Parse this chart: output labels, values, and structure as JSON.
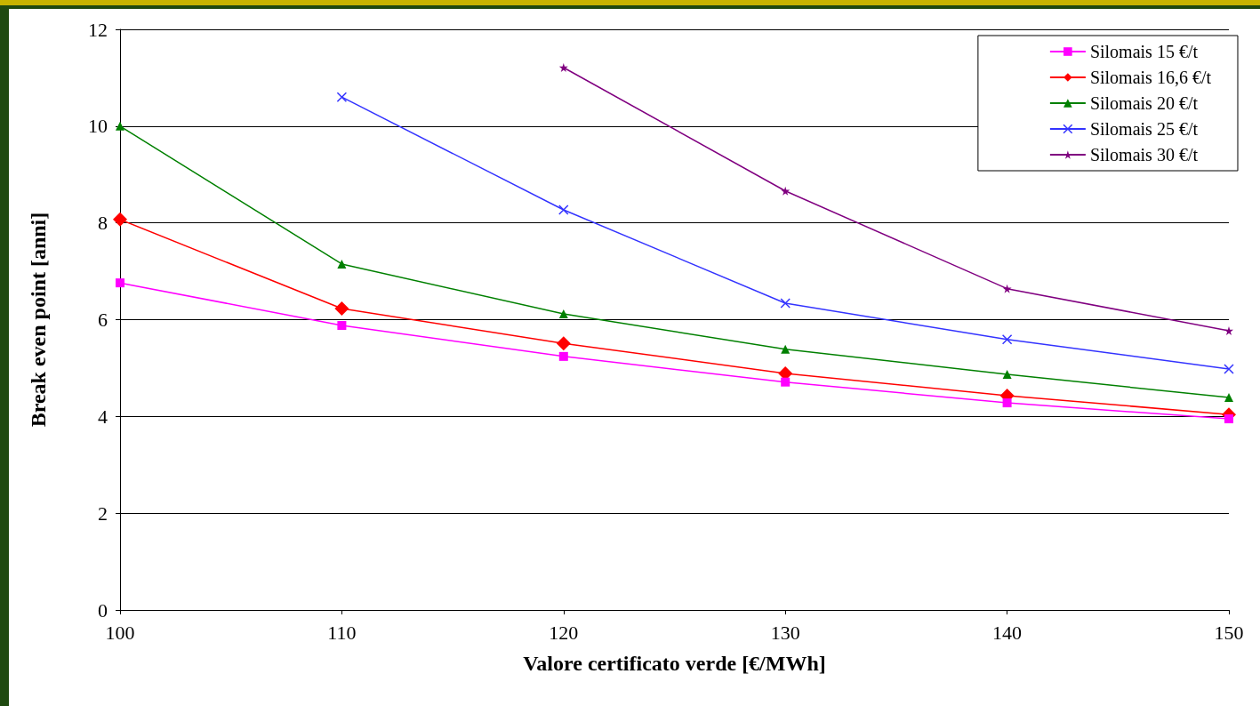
{
  "chart_data": {
    "type": "line",
    "xlabel": "Valore certificato verde [€/MWh]",
    "ylabel": "Break even point [anni]",
    "x": [
      100,
      110,
      120,
      130,
      140,
      150
    ],
    "xlim": [
      100,
      150
    ],
    "xticks": [
      100,
      110,
      120,
      130,
      140,
      150
    ],
    "ylim": [
      0,
      12
    ],
    "yticks": [
      0,
      2,
      4,
      6,
      8,
      10,
      12
    ],
    "grid": "y",
    "legend": "top right",
    "line_style": "solid",
    "series": [
      {
        "name": "Silomais 15 €/t",
        "color": "#ff00ff",
        "marker": "square",
        "values": [
          6.76,
          5.88,
          5.24,
          4.71,
          4.28,
          3.95
        ]
      },
      {
        "name": "Silomais 16,6 €/t",
        "color": "#ff0000",
        "marker": "diamond",
        "values": [
          8.07,
          6.23,
          5.51,
          4.89,
          4.43,
          4.04
        ]
      },
      {
        "name": "Silomais 20 €/t",
        "color": "#008000",
        "marker": "triangle",
        "values": [
          10.0,
          7.15,
          6.12,
          5.39,
          4.87,
          4.39
        ]
      },
      {
        "name": "Silomais 25 €/t",
        "color": "#3333ff",
        "marker": "cross",
        "values": [
          null,
          10.6,
          8.27,
          6.34,
          5.59,
          4.98
        ]
      },
      {
        "name": "Silomais 30 €/t",
        "color": "#800080",
        "marker": "star",
        "values": [
          null,
          null,
          11.21,
          8.66,
          6.64,
          5.77
        ]
      }
    ]
  }
}
